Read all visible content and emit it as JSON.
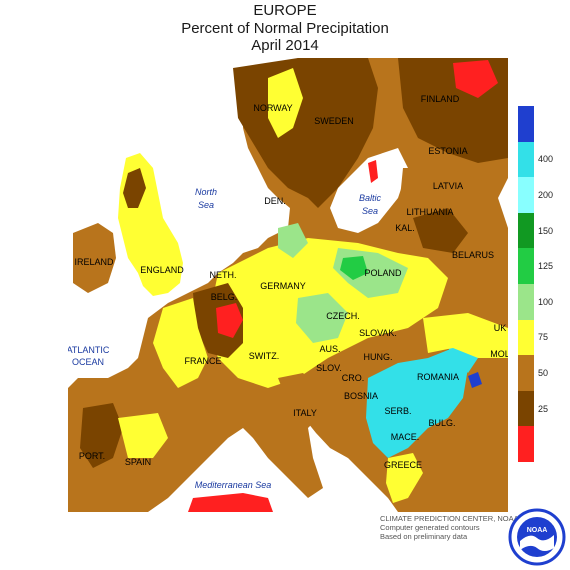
{
  "title": {
    "line1": "EUROPE",
    "line2": "Percent of Normal Precipitation",
    "line3": "April 2014"
  },
  "colors": {
    "ocean": "#ffffff",
    "lt25": "#ff2020",
    "c25_50": "#7a4400",
    "c50_75": "#b8741c",
    "c75_100": "#ffff33",
    "c100_125": "#9be58a",
    "c125_150": "#22cc44",
    "c150_200": "#119922",
    "c200_400": "#33e0e8",
    "c400_plus": "#1f3fcf",
    "gt400": "#1030b0",
    "label_country": "#000000",
    "label_sea": "#1a3aa0"
  },
  "legend": {
    "ticks": [
      "25",
      "50",
      "75",
      "100",
      "125",
      "150",
      "200",
      "400"
    ],
    "bands": [
      "#ff2020",
      "#7a4400",
      "#b8741c",
      "#ffff33",
      "#9be58a",
      "#22cc44",
      "#119922",
      "#88ffff",
      "#33e0e8",
      "#1f3fcf"
    ]
  },
  "labels": {
    "countries": [
      "NORWAY",
      "SWEDEN",
      "FINLAND",
      "ESTONIA",
      "LATVIA",
      "LITHUANIA",
      "BELARUS",
      "DEN.",
      "IRELAND",
      "ENGLAND",
      "NETH.",
      "BELG.",
      "GERMANY",
      "POLAND",
      "KAL.",
      "CZECH.",
      "SLOVAK.",
      "UK",
      "FRANCE",
      "SWITZ.",
      "AUS.",
      "HUNG.",
      "MOL",
      "SLOV.",
      "CRO.",
      "ROMANIA",
      "BOSNIA",
      "SERB.",
      "BULG.",
      "ITALY",
      "MACE.",
      "PORT.",
      "SPAIN",
      "GREECE"
    ],
    "seas": {
      "north_sea_line1": "North",
      "north_sea_line2": "Sea",
      "baltic_line1": "Baltic",
      "baltic_line2": "Sea",
      "atlantic_line1": "ATLANTIC",
      "atlantic_line2": "OCEAN",
      "med": "Mediterranean Sea"
    }
  },
  "credits": {
    "line1": "CLIMATE PREDICTION CENTER, NOAA",
    "line2": "Computer generated contours",
    "line3": "Based on preliminary data"
  },
  "logo": {
    "text": "NOAA",
    "icon": "noaa-logo-icon"
  }
}
